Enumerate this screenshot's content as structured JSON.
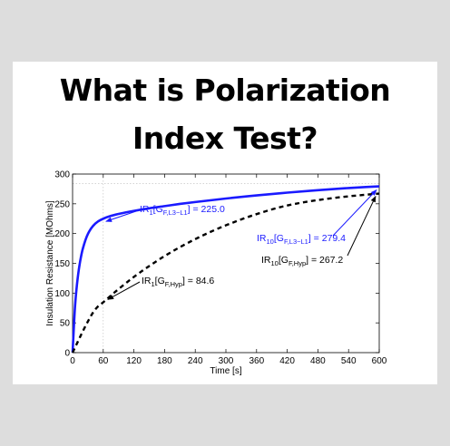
{
  "headline": {
    "line1": "What is Polarization",
    "line2": "Index Test?"
  },
  "colors": {
    "blue": "#1a1aff",
    "black": "#000000",
    "background": "#dddddd",
    "card": "#ffffff"
  },
  "chart_data": {
    "type": "line",
    "title": "",
    "xlabel": "Time [s]",
    "ylabel": "Insulation Resistance [MOhms]",
    "xlim": [
      0,
      600
    ],
    "ylim": [
      0,
      300
    ],
    "xticks": [
      0,
      60,
      120,
      180,
      240,
      300,
      360,
      420,
      480,
      540,
      600
    ],
    "yticks": [
      0,
      50,
      100,
      150,
      200,
      250,
      300
    ],
    "grid": false,
    "series": [
      {
        "style": "solid",
        "color": "#1a1aff",
        "x": [
          0,
          5,
          10,
          15,
          20,
          30,
          40,
          50,
          60,
          75,
          90,
          120,
          150,
          180,
          210,
          240,
          300,
          360,
          420,
          480,
          540,
          600
        ],
        "y": [
          0,
          80.3,
          125.1,
          154.3,
          174.6,
          199.4,
          212.8,
          220.5,
          225.0,
          229.7,
          233.0,
          238.1,
          242.4,
          246.1,
          249.8,
          253.0,
          258.9,
          264.1,
          268.8,
          272.9,
          276.5,
          279.4
        ]
      },
      {
        "style": "dashed",
        "color": "#000000",
        "x": [
          0,
          10,
          20,
          30,
          40,
          50,
          60,
          75,
          90,
          120,
          150,
          180,
          210,
          240,
          270,
          300,
          360,
          420,
          480,
          540,
          600
        ],
        "y": [
          0,
          18.0,
          35.8,
          52.4,
          67.3,
          77.9,
          84.6,
          95.9,
          106.8,
          127.2,
          145.5,
          162.2,
          177.2,
          190.7,
          202.9,
          213.9,
          232.7,
          247.2,
          256.3,
          262.6,
          267.2
        ]
      }
    ],
    "annotations": [
      {
        "prefix": "IR",
        "sub1": "1",
        "bracket_open": "[G",
        "sub2": "F,L3−L1",
        "suffix": "] = 225.0",
        "color": "#1a1aff",
        "point": [
          60,
          225.0
        ]
      },
      {
        "prefix": "IR",
        "sub1": "10",
        "bracket_open": "[G",
        "sub2": "F,L3−L1",
        "suffix": "] = 279.4",
        "color": "#1a1aff",
        "point": [
          600,
          279.4
        ]
      },
      {
        "prefix": "IR",
        "sub1": "10",
        "bracket_open": "[G",
        "sub2": "F,Hyp",
        "suffix": "] = 267.2",
        "color": "#000000",
        "point": [
          600,
          267.2
        ]
      },
      {
        "prefix": "IR",
        "sub1": "1",
        "bracket_open": "[G",
        "sub2": "F,Hyp",
        "suffix": "] = 84.6",
        "color": "#000000",
        "point": [
          60,
          84.6
        ]
      }
    ]
  }
}
